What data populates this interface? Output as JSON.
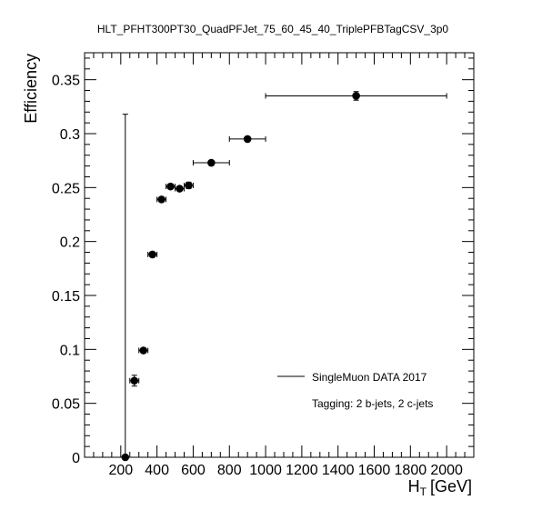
{
  "chart_data": {
    "type": "scatter",
    "title": "HLT_PFHT300PT30_QuadPFJet_75_60_45_40_TriplePFBTagCSV_3p0",
    "xlabel_main": "H",
    "xlabel_sub": "T",
    "xlabel_unit": "[GeV]",
    "ylabel": "Efficiency",
    "xlim": [
      0,
      2150
    ],
    "ylim": [
      0,
      0.375
    ],
    "x_ticks": [
      {
        "value": 200,
        "label": "200"
      },
      {
        "value": 400,
        "label": "400"
      },
      {
        "value": 600,
        "label": "600"
      },
      {
        "value": 800,
        "label": "800"
      },
      {
        "value": 1000,
        "label": "1000"
      },
      {
        "value": 1200,
        "label": "1200"
      },
      {
        "value": 1400,
        "label": "1400"
      },
      {
        "value": 1600,
        "label": "1600"
      },
      {
        "value": 1800,
        "label": "1800"
      },
      {
        "value": 2000,
        "label": "2000"
      }
    ],
    "y_ticks": [
      {
        "value": 0,
        "label": "0"
      },
      {
        "value": 0.05,
        "label": "0.05"
      },
      {
        "value": 0.1,
        "label": "0.1"
      },
      {
        "value": 0.15,
        "label": "0.15"
      },
      {
        "value": 0.2,
        "label": "0.2"
      },
      {
        "value": 0.25,
        "label": "0.25"
      },
      {
        "value": 0.3,
        "label": "0.3"
      },
      {
        "value": 0.35,
        "label": "0.35"
      }
    ],
    "series": [
      {
        "name": "SingleMuon DATA 2017",
        "points": [
          {
            "x": 225,
            "y": 0.0,
            "xerr": 0,
            "yerr_lo": 0.0,
            "yerr_hi": 0.318
          },
          {
            "x": 275,
            "y": 0.071,
            "xerr": 25,
            "yerr_lo": 0.005,
            "yerr_hi": 0.005
          },
          {
            "x": 325,
            "y": 0.099,
            "xerr": 25,
            "yerr_lo": 0.002,
            "yerr_hi": 0.002
          },
          {
            "x": 375,
            "y": 0.188,
            "xerr": 25,
            "yerr_lo": 0.002,
            "yerr_hi": 0.002
          },
          {
            "x": 425,
            "y": 0.239,
            "xerr": 25,
            "yerr_lo": 0.002,
            "yerr_hi": 0.002
          },
          {
            "x": 475,
            "y": 0.251,
            "xerr": 25,
            "yerr_lo": 0.002,
            "yerr_hi": 0.002
          },
          {
            "x": 525,
            "y": 0.249,
            "xerr": 25,
            "yerr_lo": 0.002,
            "yerr_hi": 0.002
          },
          {
            "x": 575,
            "y": 0.252,
            "xerr": 25,
            "yerr_lo": 0.003,
            "yerr_hi": 0.003
          },
          {
            "x": 700,
            "y": 0.273,
            "xerr": 100,
            "yerr_lo": 0.002,
            "yerr_hi": 0.002
          },
          {
            "x": 900,
            "y": 0.295,
            "xerr": 100,
            "yerr_lo": 0.002,
            "yerr_hi": 0.002
          },
          {
            "x": 1500,
            "y": 0.335,
            "xerr": 500,
            "yerr_lo": 0.004,
            "yerr_hi": 0.004
          }
        ]
      }
    ],
    "legend": {
      "entry": "SingleMuon DATA 2017",
      "note": "Tagging: 2 b-jets, 2 c-jets"
    },
    "grid": false
  }
}
